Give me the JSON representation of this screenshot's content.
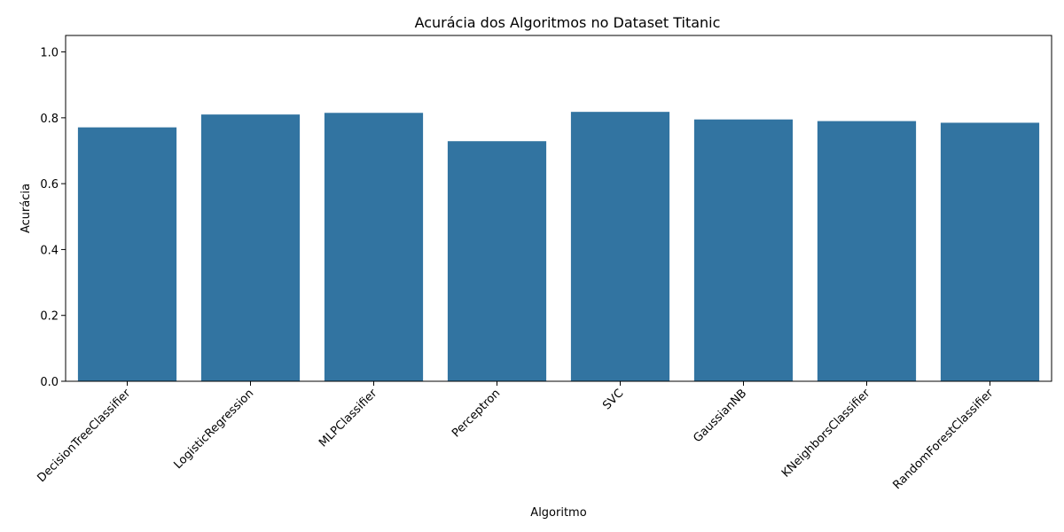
{
  "chart_data": {
    "type": "bar",
    "title": "Acurácia dos Algoritmos no Dataset Titanic",
    "xlabel": "Algoritmo",
    "ylabel": "Acurácia",
    "categories": [
      "DecisionTreeClassifier",
      "LogisticRegression",
      "MLPClassifier",
      "Perceptron",
      "SVC",
      "GaussianNB",
      "KNeighborsClassifier",
      "RandomForestClassifier"
    ],
    "values": [
      0.771,
      0.81,
      0.815,
      0.729,
      0.818,
      0.795,
      0.79,
      0.785
    ],
    "ylim": [
      0,
      1.05
    ],
    "yticks": [
      "0.0",
      "0.2",
      "0.4",
      "0.6",
      "0.8",
      "1.0"
    ],
    "grid": false,
    "bar_color": "#3274a1"
  }
}
